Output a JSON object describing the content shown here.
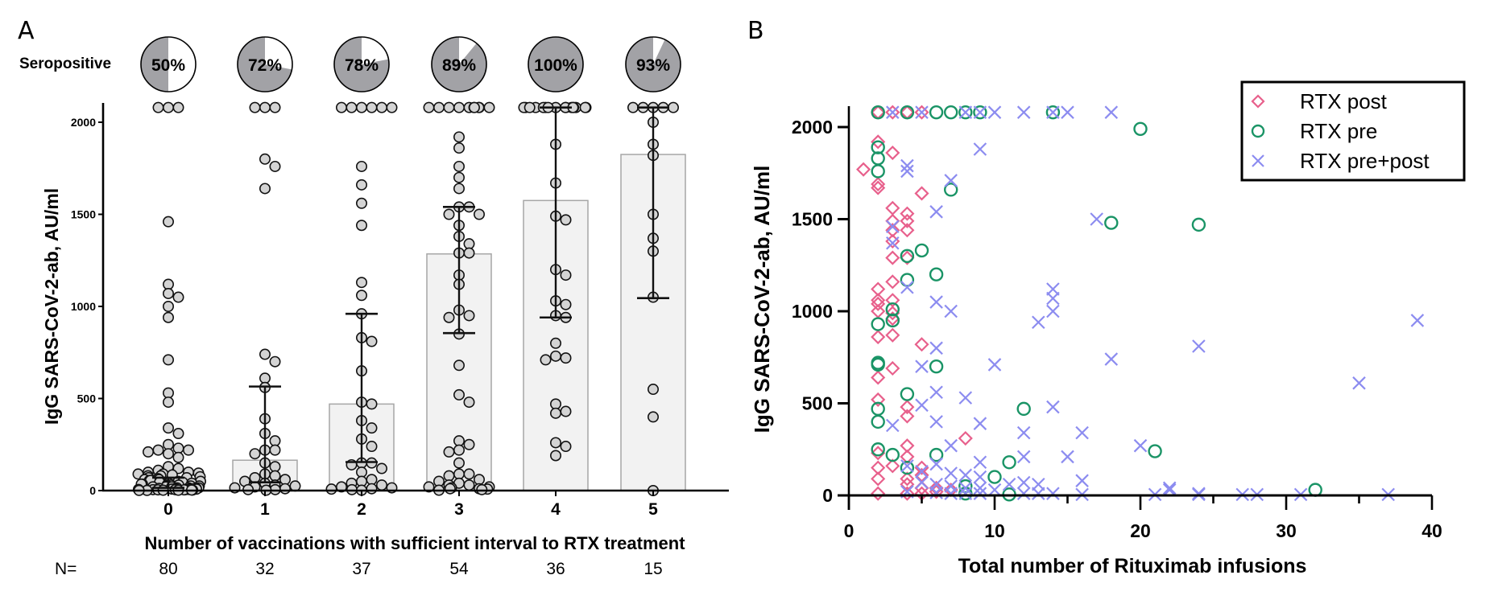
{
  "figure": {
    "panel_a_label": "A",
    "panel_b_label": "B"
  },
  "chart_data": [
    {
      "panel": "A",
      "type": "bar",
      "subtype": "bar-with-scatter-and-error-bars",
      "title": "",
      "xlabel": "Number of vaccinations with sufficient interval to RTX treatment",
      "ylabel": "IgG SARS-CoV-2-ab,  AU/ml",
      "ylim": [
        0,
        2100
      ],
      "yticks": [
        0,
        500,
        1000,
        1500,
        2000
      ],
      "categories": [
        "0",
        "1",
        "2",
        "3",
        "4",
        "5"
      ],
      "bar_statistic": "median",
      "values": [
        30,
        165,
        470,
        1285,
        1575,
        1825
      ],
      "error_bars": {
        "type": "interquartile range",
        "lower": [
          15,
          45,
          155,
          855,
          940,
          1045
        ],
        "upper": [
          70,
          565,
          960,
          1540,
          2080,
          2080
        ]
      },
      "seropositive": {
        "label": "Seropositive",
        "percent": [
          50,
          72,
          78,
          89,
          100,
          93
        ],
        "labels": [
          "50%",
          "72%",
          "78%",
          "89%",
          "100%",
          "93%"
        ]
      },
      "n_row": {
        "label": "N=",
        "values": [
          "80",
          "32",
          "37",
          "54",
          "36",
          "15"
        ]
      },
      "points": [
        [
          2080,
          2080,
          2080,
          1460,
          1120,
          1070,
          1050,
          1000,
          940,
          710,
          530,
          480,
          340,
          310,
          250,
          230,
          220,
          220,
          210,
          200,
          180,
          130,
          120,
          110,
          100,
          100,
          95,
          90,
          90,
          85,
          80,
          80,
          75,
          70,
          70,
          65,
          60,
          60,
          55,
          55,
          50,
          50,
          45,
          45,
          40,
          40,
          35,
          35,
          30,
          30,
          30,
          25,
          25,
          25,
          20,
          20,
          20,
          15,
          15,
          15,
          12,
          12,
          10,
          10,
          10,
          8,
          8,
          6,
          6,
          5,
          5,
          5,
          4,
          4,
          3,
          3,
          2,
          2,
          1,
          1
        ],
        [
          2080,
          2080,
          2080,
          1800,
          1760,
          1640,
          740,
          700,
          610,
          560,
          390,
          310,
          270,
          220,
          220,
          200,
          150,
          130,
          90,
          80,
          70,
          60,
          50,
          40,
          30,
          25,
          20,
          15,
          10,
          5,
          5,
          2
        ],
        [
          2080,
          2080,
          2080,
          2080,
          2080,
          2080,
          1760,
          1660,
          1560,
          1440,
          1130,
          1060,
          960,
          830,
          810,
          650,
          480,
          470,
          380,
          340,
          280,
          240,
          150,
          150,
          140,
          120,
          100,
          60,
          50,
          40,
          30,
          20,
          15,
          10,
          8,
          5,
          2
        ],
        [
          2080,
          2080,
          2080,
          2080,
          2080,
          2080,
          2080,
          2080,
          2080,
          2080,
          1920,
          1860,
          1760,
          1700,
          1640,
          1540,
          1540,
          1500,
          1500,
          1440,
          1380,
          1340,
          1290,
          1290,
          1170,
          1120,
          980,
          950,
          940,
          850,
          680,
          520,
          480,
          270,
          250,
          220,
          210,
          150,
          90,
          90,
          80,
          60,
          50,
          40,
          30,
          30,
          20,
          20,
          15,
          10,
          10,
          8,
          5,
          2
        ],
        [
          2080,
          2080,
          2080,
          2080,
          2080,
          2080,
          2080,
          2080,
          2080,
          2080,
          2080,
          2080,
          2080,
          2080,
          2080,
          2080,
          1880,
          1670,
          1490,
          1470,
          1200,
          1170,
          1030,
          1010,
          950,
          940,
          800,
          730,
          720,
          710,
          470,
          430,
          420,
          260,
          240,
          190
        ],
        [
          2080,
          2080,
          2080,
          2080,
          2080,
          2000,
          1880,
          1820,
          1500,
          1370,
          1300,
          1050,
          550,
          400,
          0
        ]
      ],
      "colors": {
        "point_fill": "#d4d4d4",
        "bar_fill": "#f2f2f2",
        "bar_stroke": "#a6a6a6",
        "pie_positive": "#a2a2a6",
        "pie_negative": "#ffffff"
      }
    },
    {
      "panel": "B",
      "type": "scatter",
      "title": "",
      "xlabel": "Total number of Rituximab infusions",
      "ylabel": "IgG SARS-CoV-2-ab,  AU/ml",
      "xlim": [
        0,
        40
      ],
      "ylim": [
        0,
        2100
      ],
      "xticks": [
        0,
        10,
        20,
        30,
        40
      ],
      "yticks": [
        0,
        500,
        1000,
        1500,
        2000
      ],
      "legend_position": "top-right",
      "series": [
        {
          "name": "RTX post",
          "marker": "diamond",
          "color": "#e8608c",
          "points": [
            [
              2,
              2080
            ],
            [
              3,
              2080
            ],
            [
              4,
              2080
            ],
            [
              5,
              2080
            ],
            [
              2,
              1920
            ],
            [
              3,
              1860
            ],
            [
              1,
              1770
            ],
            [
              2,
              1690
            ],
            [
              2,
              1670
            ],
            [
              5,
              1640
            ],
            [
              3,
              1560
            ],
            [
              4,
              1530
            ],
            [
              3,
              1490
            ],
            [
              4,
              1490
            ],
            [
              3,
              1440
            ],
            [
              4,
              1440
            ],
            [
              3,
              1380
            ],
            [
              3,
              1290
            ],
            [
              4,
              1290
            ],
            [
              3,
              1160
            ],
            [
              2,
              1120
            ],
            [
              2,
              1060
            ],
            [
              2,
              1040
            ],
            [
              3,
              1060
            ],
            [
              2,
              1000
            ],
            [
              3,
              990
            ],
            [
              3,
              960
            ],
            [
              2,
              860
            ],
            [
              3,
              870
            ],
            [
              5,
              820
            ],
            [
              3,
              690
            ],
            [
              2,
              640
            ],
            [
              2,
              520
            ],
            [
              4,
              480
            ],
            [
              4,
              430
            ],
            [
              8,
              310
            ],
            [
              4,
              270
            ],
            [
              2,
              230
            ],
            [
              3,
              160
            ],
            [
              2,
              150
            ],
            [
              4,
              210
            ],
            [
              5,
              150
            ],
            [
              2,
              90
            ],
            [
              4,
              90
            ],
            [
              5,
              110
            ],
            [
              4,
              60
            ],
            [
              5,
              40
            ],
            [
              6,
              40
            ],
            [
              2,
              10
            ],
            [
              4,
              10
            ],
            [
              5,
              10
            ],
            [
              6,
              20
            ],
            [
              7,
              30
            ]
          ]
        },
        {
          "name": "RTX pre",
          "marker": "circle",
          "color": "#1a9466",
          "points": [
            [
              2,
              2080
            ],
            [
              4,
              2080
            ],
            [
              6,
              2080
            ],
            [
              7,
              2080
            ],
            [
              8,
              2080
            ],
            [
              9,
              2080
            ],
            [
              14,
              2080
            ],
            [
              20,
              1990
            ],
            [
              2,
              1890
            ],
            [
              2,
              1830
            ],
            [
              2,
              1760
            ],
            [
              7,
              1660
            ],
            [
              18,
              1480
            ],
            [
              24,
              1470
            ],
            [
              5,
              1330
            ],
            [
              4,
              1300
            ],
            [
              6,
              1200
            ],
            [
              4,
              1170
            ],
            [
              3,
              1010
            ],
            [
              2,
              930
            ],
            [
              3,
              950
            ],
            [
              2,
              720
            ],
            [
              2,
              710
            ],
            [
              6,
              700
            ],
            [
              4,
              550
            ],
            [
              12,
              470
            ],
            [
              2,
              470
            ],
            [
              2,
              400
            ],
            [
              2,
              250
            ],
            [
              21,
              240
            ],
            [
              3,
              220
            ],
            [
              6,
              220
            ],
            [
              11,
              180
            ],
            [
              4,
              150
            ],
            [
              10,
              100
            ],
            [
              8,
              50
            ],
            [
              32,
              30
            ],
            [
              8,
              10
            ],
            [
              11,
              5
            ]
          ]
        },
        {
          "name": "RTX pre+post",
          "marker": "x",
          "color": "#8c8cf0",
          "points": [
            [
              3,
              2080
            ],
            [
              5,
              2080
            ],
            [
              8,
              2080
            ],
            [
              9,
              2080
            ],
            [
              10,
              2080
            ],
            [
              12,
              2080
            ],
            [
              14,
              2080
            ],
            [
              15,
              2080
            ],
            [
              18,
              2080
            ],
            [
              9,
              1880
            ],
            [
              4,
              1790
            ],
            [
              4,
              1760
            ],
            [
              7,
              1710
            ],
            [
              6,
              1540
            ],
            [
              17,
              1500
            ],
            [
              3,
              1460
            ],
            [
              3,
              1370
            ],
            [
              4,
              1130
            ],
            [
              14,
              1120
            ],
            [
              14,
              1070
            ],
            [
              6,
              1050
            ],
            [
              7,
              1000
            ],
            [
              14,
              1000
            ],
            [
              13,
              940
            ],
            [
              39,
              950
            ],
            [
              24,
              810
            ],
            [
              6,
              800
            ],
            [
              18,
              740
            ],
            [
              10,
              710
            ],
            [
              5,
              700
            ],
            [
              35,
              610
            ],
            [
              6,
              560
            ],
            [
              8,
              530
            ],
            [
              5,
              490
            ],
            [
              14,
              480
            ],
            [
              3,
              380
            ],
            [
              6,
              400
            ],
            [
              9,
              390
            ],
            [
              12,
              340
            ],
            [
              16,
              340
            ],
            [
              7,
              270
            ],
            [
              20,
              270
            ],
            [
              12,
              210
            ],
            [
              15,
              210
            ],
            [
              9,
              180
            ],
            [
              6,
              170
            ],
            [
              4,
              160
            ],
            [
              5,
              130
            ],
            [
              7,
              120
            ],
            [
              8,
              110
            ],
            [
              9,
              100
            ],
            [
              11,
              60
            ],
            [
              12,
              70
            ],
            [
              13,
              60
            ],
            [
              16,
              80
            ],
            [
              5,
              70
            ],
            [
              6,
              60
            ],
            [
              7,
              50
            ],
            [
              8,
              40
            ],
            [
              9,
              40
            ],
            [
              10,
              30
            ],
            [
              22,
              40
            ],
            [
              22,
              30
            ],
            [
              4,
              20
            ],
            [
              6,
              15
            ],
            [
              7,
              10
            ],
            [
              8,
              10
            ],
            [
              9,
              10
            ],
            [
              12,
              10
            ],
            [
              13,
              10
            ],
            [
              14,
              10
            ],
            [
              16,
              5
            ],
            [
              21,
              5
            ],
            [
              24,
              10
            ],
            [
              24,
              5
            ],
            [
              27,
              5
            ],
            [
              28,
              5
            ],
            [
              31,
              5
            ],
            [
              37,
              5
            ]
          ]
        }
      ]
    }
  ]
}
